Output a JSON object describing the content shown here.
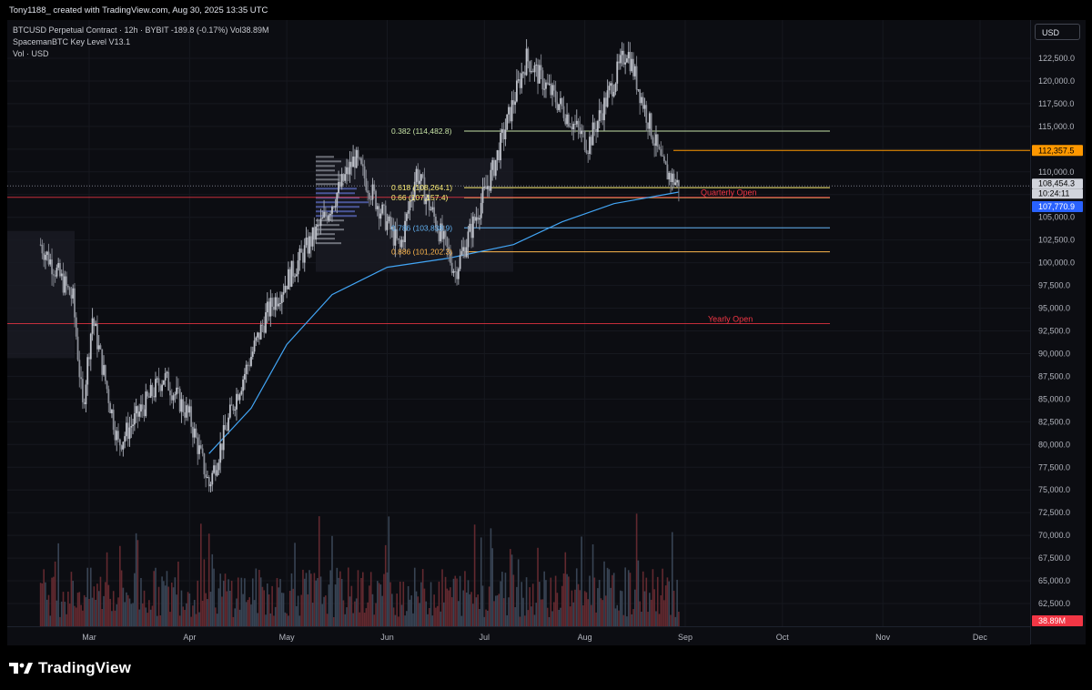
{
  "credit": "Tony1188_ created with TradingView.com, Aug 30, 2025 13:35 UTC",
  "legend": {
    "symbol_line": "BTCUSD Perpetual Contract · 12h · BYBIT  -189.8 (-0.17%)  Vol38.89M",
    "indicator_line": "SpacemanBTC Key Level V13.1",
    "volume_line": "Vol · USD"
  },
  "currency_button": "USD",
  "brand": "TradingView",
  "colors": {
    "background": "#0c0d12",
    "up": "#9fa3ad",
    "down": "#7a7d86",
    "accent_blue": "#2962ff",
    "orange": "#ff9800",
    "red_level": "#f23645"
  },
  "price_labels": {
    "current_price": "108,454.3",
    "countdown": "10:24:11",
    "ma_value": "107,770.9",
    "orange_level": "112,357.5",
    "volume_value": "38.89M"
  },
  "chart_data": {
    "type": "candlestick",
    "interval": "12h",
    "ylim": [
      60000,
      125000
    ],
    "y_ticks": [
      "122,500.0",
      "120,000.0",
      "117,500.0",
      "115,000.0",
      "112,500.0",
      "110,000.0",
      "107,500.0",
      "105,000.0",
      "102,500.0",
      "100,000.0",
      "97,500.0",
      "95,000.0",
      "92,500.0",
      "90,000.0",
      "87,500.0",
      "85,000.0",
      "82,500.0",
      "80,000.0",
      "77,500.0",
      "75,000.0",
      "72,500.0",
      "70,000.0",
      "67,500.0",
      "65,000.0",
      "62,500.0"
    ],
    "x_ticks": [
      "Mar",
      "Apr",
      "May",
      "Jun",
      "Jul",
      "Aug",
      "Sep",
      "Oct",
      "Nov",
      "Dec"
    ],
    "price_path": [
      {
        "x": "2025-02-14",
        "y": 102000
      },
      {
        "x": "2025-02-24",
        "y": 96000
      },
      {
        "x": "2025-02-27",
        "y": 84000
      },
      {
        "x": "2025-03-02",
        "y": 94000
      },
      {
        "x": "2025-03-10",
        "y": 80000
      },
      {
        "x": "2025-03-24",
        "y": 87500
      },
      {
        "x": "2025-04-01",
        "y": 83000
      },
      {
        "x": "2025-04-07",
        "y": 75500
      },
      {
        "x": "2025-04-15",
        "y": 85000
      },
      {
        "x": "2025-04-25",
        "y": 94500
      },
      {
        "x": "2025-05-12",
        "y": 104500
      },
      {
        "x": "2025-05-22",
        "y": 111500
      },
      {
        "x": "2025-06-05",
        "y": 101500
      },
      {
        "x": "2025-06-10",
        "y": 110000
      },
      {
        "x": "2025-06-22",
        "y": 99000
      },
      {
        "x": "2025-07-03",
        "y": 109500
      },
      {
        "x": "2025-07-14",
        "y": 122500
      },
      {
        "x": "2025-08-02",
        "y": 113000
      },
      {
        "x": "2025-08-14",
        "y": 123500
      },
      {
        "x": "2025-08-25",
        "y": 110500
      },
      {
        "x": "2025-08-30",
        "y": 108454
      }
    ],
    "moving_average": [
      {
        "x": "2025-04-07",
        "y": 79000
      },
      {
        "x": "2025-04-20",
        "y": 84000
      },
      {
        "x": "2025-05-01",
        "y": 91000
      },
      {
        "x": "2025-05-15",
        "y": 96500
      },
      {
        "x": "2025-06-01",
        "y": 99500
      },
      {
        "x": "2025-06-20",
        "y": 100500
      },
      {
        "x": "2025-07-10",
        "y": 102000
      },
      {
        "x": "2025-07-25",
        "y": 104500
      },
      {
        "x": "2025-08-10",
        "y": 106500
      },
      {
        "x": "2025-08-30",
        "y": 107770.9
      }
    ],
    "fib_levels": [
      {
        "label": "0.382 (114,482.8)",
        "value": 114482.8,
        "color": "#c5e1a5"
      },
      {
        "label": "0.618 (108,264.1)",
        "value": 108264.1,
        "color": "#fff176"
      },
      {
        "label": "0.66 (107,157.4)",
        "value": 107157.4,
        "color": "#fff176"
      },
      {
        "label": "0.786 (103,838.9)",
        "value": 103838.9,
        "color": "#64b5f6"
      },
      {
        "label": "0.886 (101,202.3)",
        "value": 101202.3,
        "color": "#ffb74d"
      }
    ],
    "key_levels": [
      {
        "label": "Quarterly Open",
        "value": 107200,
        "color": "#f23645"
      },
      {
        "label": "Yearly Open",
        "value": 93300,
        "color": "#f23645"
      }
    ],
    "orange_level": 112357.5,
    "current_price": 108454.3,
    "legend_position": "top-left"
  }
}
